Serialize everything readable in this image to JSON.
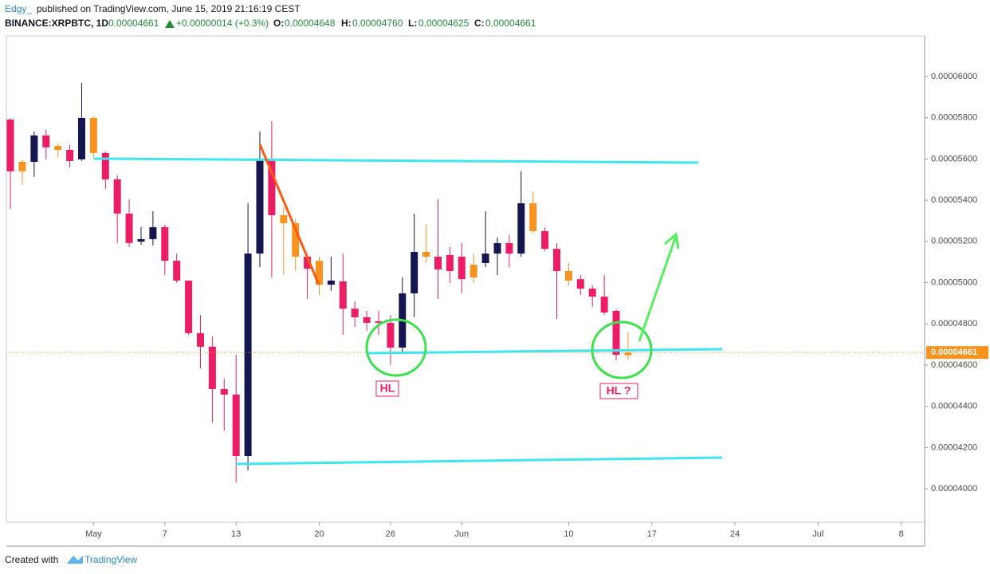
{
  "header": {
    "author": "Edgy_",
    "published": "published on TradingView.com, June 15, 2019 21:16:19 CEST",
    "symbol": "BINANCE:XRPBTC, 1D",
    "last": "0.00004661",
    "change": "+0.00000014 (+0.3%)",
    "o_label": "O:",
    "o": "0.00004648",
    "h_label": "H:",
    "h": "0.00004760",
    "l_label": "L:",
    "l": "0.00004625",
    "c_label": "C:",
    "c": "0.00004661"
  },
  "footer": {
    "created": "Created with",
    "brand": "TradingView"
  },
  "chart_data": {
    "type": "candlestick",
    "open": [
      5.791e-05,
      5.54e-05,
      5.586e-05,
      5.714e-05,
      5.663e-05,
      5.644e-05,
      5.598e-05,
      5.799e-05,
      5.629e-05,
      5.501e-05,
      5.335e-05,
      5.199e-05,
      5.211e-05,
      5.269e-05,
      5.106e-05,
      5.01e-05,
      4.755e-05,
      4.689e-05,
      4.484e-05,
      4.457e-05,
      4.159e-05,
      5.141e-05,
      5.598e-05,
      5.327e-05,
      5.288e-05,
      5.126e-05,
      5.106e-05,
      4.99e-05,
      5.006e-05,
      4.874e-05,
      4.832e-05,
      4.812e-05,
      4.805e-05,
      4.685e-05,
      4.948e-05,
      5.149e-05,
      5.126e-05,
      5.134e-05,
      5.126e-05,
      5.087e-05,
      5.095e-05,
      5.141e-05,
      5.192e-05,
      5.141e-05,
      5.385e-05,
      5.25e-05,
      5.164e-05,
      5.056e-05,
      5.017e-05,
      4.971e-05,
      4.932e-05,
      4.863e-05,
      4.648e-05
    ],
    "high": [
      5.799e-05,
      5.598e-05,
      5.733e-05,
      5.741e-05,
      5.675e-05,
      5.667e-05,
      5.969e-05,
      5.807e-05,
      5.636e-05,
      5.52e-05,
      5.404e-05,
      5.269e-05,
      5.346e-05,
      5.281e-05,
      5.141e-05,
      5.01e-05,
      4.843e-05,
      4.739e-05,
      4.534e-05,
      4.65e-05,
      5.385e-05,
      5.733e-05,
      5.783e-05,
      5.366e-05,
      5.308e-05,
      5.134e-05,
      5.126e-05,
      5.126e-05,
      5.141e-05,
      4.909e-05,
      4.863e-05,
      4.863e-05,
      4.843e-05,
      5.025e-05,
      5.335e-05,
      5.281e-05,
      5.404e-05,
      5.172e-05,
      5.192e-05,
      5.141e-05,
      5.346e-05,
      5.219e-05,
      5.23e-05,
      5.54e-05,
      5.443e-05,
      5.269e-05,
      5.192e-05,
      5.095e-05,
      5.037e-05,
      4.987e-05,
      5.037e-05,
      4.87e-05,
      4.76e-05
    ],
    "low": [
      5.358e-05,
      5.474e-05,
      5.513e-05,
      5.598e-05,
      5.609e-05,
      5.559e-05,
      5.59e-05,
      5.605e-05,
      5.454e-05,
      5.192e-05,
      5.172e-05,
      5.184e-05,
      5.18e-05,
      5.037e-05,
      4.998e-05,
      4.747e-05,
      4.584e-05,
      4.321e-05,
      4.283e-05,
      4.031e-05,
      4.089e-05,
      5.075e-05,
      5.025e-05,
      5.037e-05,
      5.056e-05,
      4.921e-05,
      4.94e-05,
      4.96e-05,
      4.747e-05,
      4.785e-05,
      4.766e-05,
      4.747e-05,
      4.6e-05,
      4.662e-05,
      4.832e-05,
      5.095e-05,
      4.921e-05,
      4.998e-05,
      4.948e-05,
      4.998e-05,
      5.075e-05,
      5.037e-05,
      5.075e-05,
      5.126e-05,
      5.242e-05,
      5.153e-05,
      4.824e-05,
      4.987e-05,
      4.94e-05,
      4.882e-05,
      4.843e-05,
      4.623e-05,
      4.625e-05
    ],
    "close": [
      5.54e-05,
      5.586e-05,
      5.714e-05,
      5.656e-05,
      5.644e-05,
      5.59e-05,
      5.799e-05,
      5.629e-05,
      5.501e-05,
      5.335e-05,
      5.192e-05,
      5.211e-05,
      5.269e-05,
      5.106e-05,
      5.01e-05,
      4.755e-05,
      4.689e-05,
      4.484e-05,
      4.457e-05,
      4.159e-05,
      5.141e-05,
      5.598e-05,
      5.327e-05,
      5.288e-05,
      5.126e-05,
      5.068e-05,
      4.99e-05,
      5.01e-05,
      4.874e-05,
      4.832e-05,
      4.805e-05,
      4.805e-05,
      4.685e-05,
      4.948e-05,
      5.149e-05,
      5.126e-05,
      5.064e-05,
      5.056e-05,
      5.017e-05,
      5.025e-05,
      5.141e-05,
      5.192e-05,
      5.141e-05,
      5.385e-05,
      5.25e-05,
      5.164e-05,
      5.056e-05,
      5.01e-05,
      4.971e-05,
      4.932e-05,
      4.855e-05,
      4.65e-05,
      4.661e-05
    ],
    "colors": [
      "#ec1c65",
      "#f7931e",
      "#15154f",
      "#ec1c65",
      "#f7931e",
      "#ec1c65",
      "#15154f",
      "#f7931e",
      "#ec1c65",
      "#ec1c65",
      "#ec1c65",
      "#15154f",
      "#15154f",
      "#ec1c65",
      "#ec1c65",
      "#ec1c65",
      "#ec1c65",
      "#ec1c65",
      "#ec1c65",
      "#ec1c65",
      "#15154f",
      "#15154f",
      "#ec1c65",
      "#f7931e",
      "#f7931e",
      "#ec1c65",
      "#f7931e",
      "#15154f",
      "#ec1c65",
      "#ec1c65",
      "#ec1c65",
      "#ec1c65",
      "#ec1c65",
      "#15154f",
      "#15154f",
      "#f7931e",
      "#ec1c65",
      "#ec1c65",
      "#ec1c65",
      "#f7931e",
      "#15154f",
      "#15154f",
      "#ec1c65",
      "#15154f",
      "#f7931e",
      "#ec1c65",
      "#ec1c65",
      "#f7931e",
      "#ec1c65",
      "#ec1c65",
      "#ec1c65",
      "#ec1c65",
      "#f7931e"
    ],
    "xlim": [
      -0.34,
      76.97
    ],
    "xticks": [
      {
        "value": 7,
        "label": "May"
      },
      {
        "value": 13,
        "label": "7"
      },
      {
        "value": 19,
        "label": "13"
      },
      {
        "value": 26,
        "label": "20"
      },
      {
        "value": 32,
        "label": "26"
      },
      {
        "value": 38,
        "label": "Jun"
      },
      {
        "value": 47,
        "label": "10"
      },
      {
        "value": 54,
        "label": "17"
      },
      {
        "value": 61,
        "label": "24"
      },
      {
        "value": 68,
        "label": "Jul"
      },
      {
        "value": 75,
        "label": "8"
      }
    ],
    "ylim": [
      3.838e-05,
      6.197e-05
    ],
    "yticks": [
      {
        "value": 4e-05,
        "label": "0.00004000"
      },
      {
        "value": 4.2e-05,
        "label": "0.00004200"
      },
      {
        "value": 4.4e-05,
        "label": "0.00004400"
      },
      {
        "value": 4.6e-05,
        "label": "0.00004600"
      },
      {
        "value": 4.8e-05,
        "label": "0.00004800"
      },
      {
        "value": 5e-05,
        "label": "0.00005000"
      },
      {
        "value": 5.2e-05,
        "label": "0.00005200"
      },
      {
        "value": 5.4e-05,
        "label": "0.00005400"
      },
      {
        "value": 5.6e-05,
        "label": "0.00005600"
      },
      {
        "value": 5.8e-05,
        "label": "0.00005800"
      },
      {
        "value": 6e-05,
        "label": "0.00006000"
      }
    ],
    "last_price": {
      "value": 4.661e-05,
      "label": "0.00004661",
      "color": "#f7931e"
    },
    "annotations": [
      "HL",
      "HL ?"
    ]
  }
}
